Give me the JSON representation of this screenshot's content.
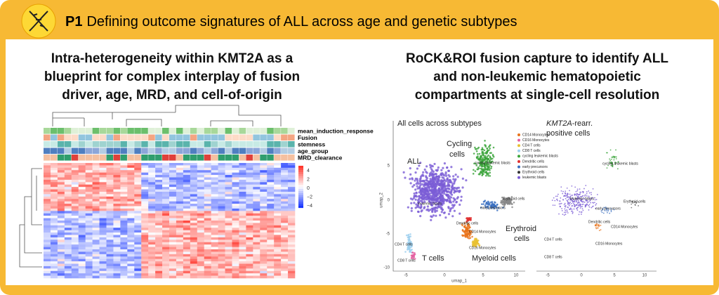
{
  "header": {
    "label": "P1",
    "title": "Defining outcome signatures of ALL across age and genetic subtypes"
  },
  "left": {
    "heading": [
      "Intra-heterogeneity within KMT2A as a",
      "blueprint for complex interplay of fusion",
      "driver, age, MRD, and cell-of-origin"
    ],
    "heatmap": {
      "annotations": [
        "mean_induction_response",
        "Fusion",
        "stemness",
        "age_group",
        "MRD_clearance"
      ],
      "scale_ticks": [
        "4",
        "2",
        "0",
        "−2",
        "−4"
      ]
    }
  },
  "right": {
    "heading": [
      "RoCK&ROI fusion capture to identify ALL",
      "and non-leukemic hematopoietic",
      "compartments at single-cell resolution"
    ],
    "umap_all": {
      "title": "All cells across subtypes",
      "legend": [
        {
          "label": "CD14 Monocytes",
          "color": "#e8731a"
        },
        {
          "label": "CD16 Monocytes",
          "color": "#e45fa0"
        },
        {
          "label": "CD4 T cells",
          "color": "#e8c030"
        },
        {
          "label": "CD8 T cells",
          "color": "#9ed0ef"
        },
        {
          "label": "cycling leukemic blasts",
          "color": "#3aa43a"
        },
        {
          "label": "Dendritic cells",
          "color": "#e03030"
        },
        {
          "label": "early precursors",
          "color": "#3a6fc0"
        },
        {
          "label": "Erythroid cells",
          "color": "#333333"
        },
        {
          "label": "leukemic blasts",
          "color": "#7b5cd6"
        }
      ],
      "cluster_labels": [
        "cycling leukemic blasts",
        "leukemic blasts",
        "early precursors",
        "Erythroid cells",
        "Dendritic cells",
        "CD14 Monocytes",
        "CD16 Monocytes",
        "CD4 T cells",
        "CD8 T cells"
      ],
      "region_labels": [
        [
          "ALL"
        ],
        [
          "Cycling",
          "cells"
        ],
        [
          "Erythroid",
          "cells"
        ],
        [
          "T cells"
        ],
        [
          "Myeloid cells"
        ]
      ],
      "xlabel": "umap_1",
      "ylabel": "umap_2",
      "xticks": [
        "-5",
        "0",
        "5",
        "10"
      ],
      "yticks": [
        "5",
        "0",
        "-5",
        "-10"
      ]
    },
    "umap_kmt2a": {
      "title": {
        "gene": "KMT2A",
        "suffix": "-rearr.",
        "line2": "positive cells"
      },
      "cluster_labels": [
        "cycling leukemic blasts",
        "leukemic blasts",
        "Erythroid cells",
        "early precursors",
        "Dendritic cells",
        "CD14 Monocytes",
        "CD16 Monocytes",
        "CD4 T cells",
        "CD8 T cells"
      ],
      "xticks": [
        "-5",
        "0",
        "5",
        "10"
      ]
    }
  }
}
